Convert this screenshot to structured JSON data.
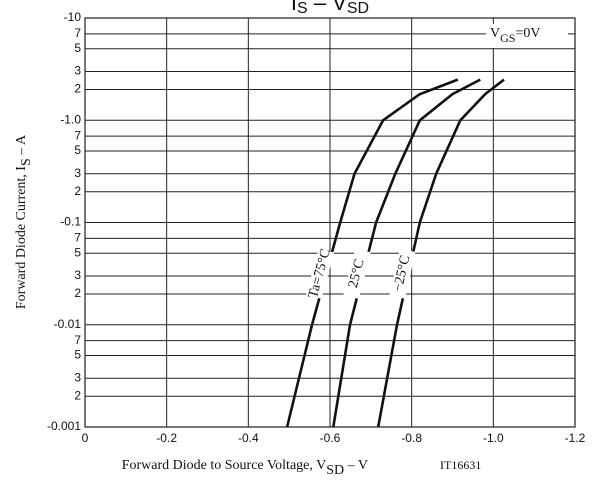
{
  "chart_data": {
    "type": "line",
    "title": {
      "main": "I",
      "sub": "S",
      "mid": " – V",
      "sub2": "SD"
    },
    "x_label": {
      "main": "Forward Diode to Source Voltage, V",
      "sub": "SD",
      "tail": " – V"
    },
    "y_label": {
      "main": "Forward Diode Current, I",
      "sub": "S",
      "tail": " – A"
    },
    "figure_id": "IT16631",
    "annotation": {
      "main": "V",
      "sub": "GS",
      "tail": "=0V"
    },
    "log_y": true,
    "grid": true,
    "xlim": [
      0,
      -1.2
    ],
    "xticks": [
      0,
      -0.2,
      -0.4,
      -0.6,
      -0.8,
      {
        "value": -1.0,
        "label": "-1.0"
      },
      -1.2
    ],
    "ylim": [
      -0.001,
      -10
    ],
    "yticks": [
      -0.001,
      {
        "value": -0.002,
        "label": "2"
      },
      {
        "value": -0.003,
        "label": "3"
      },
      {
        "value": -0.005,
        "label": "5"
      },
      {
        "value": -0.007,
        "label": "7"
      },
      -0.01,
      {
        "value": -0.02,
        "label": "2"
      },
      {
        "value": -0.03,
        "label": "3"
      },
      {
        "value": -0.05,
        "label": "5"
      },
      {
        "value": -0.07,
        "label": "7"
      },
      -0.1,
      {
        "value": -0.2,
        "label": "2"
      },
      {
        "value": -0.3,
        "label": "3"
      },
      {
        "value": -0.5,
        "label": "5"
      },
      {
        "value": -0.7,
        "label": "7"
      },
      {
        "value": -1.0,
        "label": "-1.0"
      },
      {
        "value": -2,
        "label": "2"
      },
      {
        "value": -3,
        "label": "3"
      },
      {
        "value": -5,
        "label": "5"
      },
      {
        "value": -7,
        "label": "7"
      },
      -10
    ],
    "series": [
      {
        "name": "Ta=75°C",
        "color": "#111111",
        "x": [
          -0.495,
          -0.556,
          -0.625,
          -0.66,
          -0.73,
          -0.82,
          -0.913
        ],
        "values": [
          -0.001,
          -0.01,
          -0.1,
          -0.3,
          -1,
          -1.8,
          -2.5
        ]
      },
      {
        "name": "25°C",
        "color": "#111111",
        "x": [
          -0.608,
          -0.649,
          -0.713,
          -0.76,
          -0.82,
          -0.9,
          -0.968
        ],
        "values": [
          -0.001,
          -0.01,
          -0.1,
          -0.3,
          -1,
          -1.8,
          -2.5
        ]
      },
      {
        "name": "−25°C",
        "color": "#111111",
        "x": [
          -0.718,
          -0.764,
          -0.82,
          -0.86,
          -0.919,
          -0.98,
          -1.026
        ],
        "values": [
          -0.001,
          -0.01,
          -0.1,
          -0.3,
          -1,
          -1.8,
          -2.5
        ]
      }
    ]
  }
}
